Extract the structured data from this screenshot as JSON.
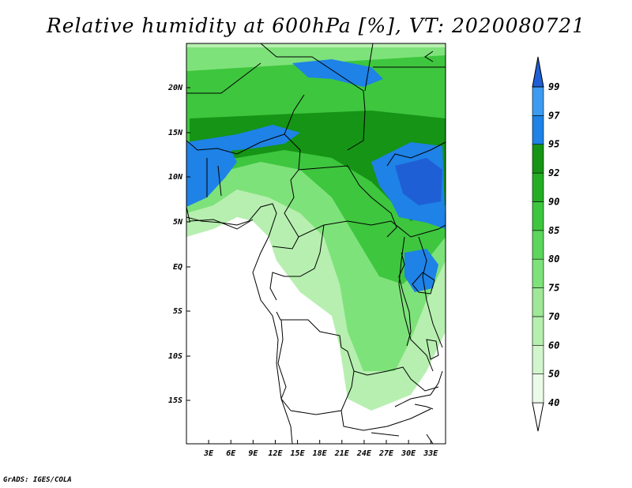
{
  "title": "Relative humidity at 600hPa [%], VT: 2020080721",
  "credit": "GrADS: IGES/COLA",
  "map": {
    "lat_labels": [
      "20N",
      "15N",
      "10N",
      "5N",
      "EQ",
      "5S",
      "10S",
      "15S"
    ],
    "lon_labels": [
      "3E",
      "6E",
      "9E",
      "12E",
      "15E",
      "18E",
      "21E",
      "24E",
      "27E",
      "30E",
      "33E"
    ],
    "lon_range_deg": [
      0,
      35
    ],
    "lat_range_deg": [
      -20,
      25
    ]
  },
  "colorbar": {
    "levels": [
      "40",
      "50",
      "60",
      "70",
      "75",
      "80",
      "85",
      "90",
      "92",
      "95",
      "97",
      "99"
    ],
    "colors": [
      "#ffffff",
      "#eafbe8",
      "#d2f5cd",
      "#b7efb0",
      "#9ee898",
      "#7ee27a",
      "#5cd65c",
      "#3ec63e",
      "#24ad24",
      "#159415",
      "#1e82e6",
      "#3c9bf0",
      "#1f5fd6"
    ]
  }
}
